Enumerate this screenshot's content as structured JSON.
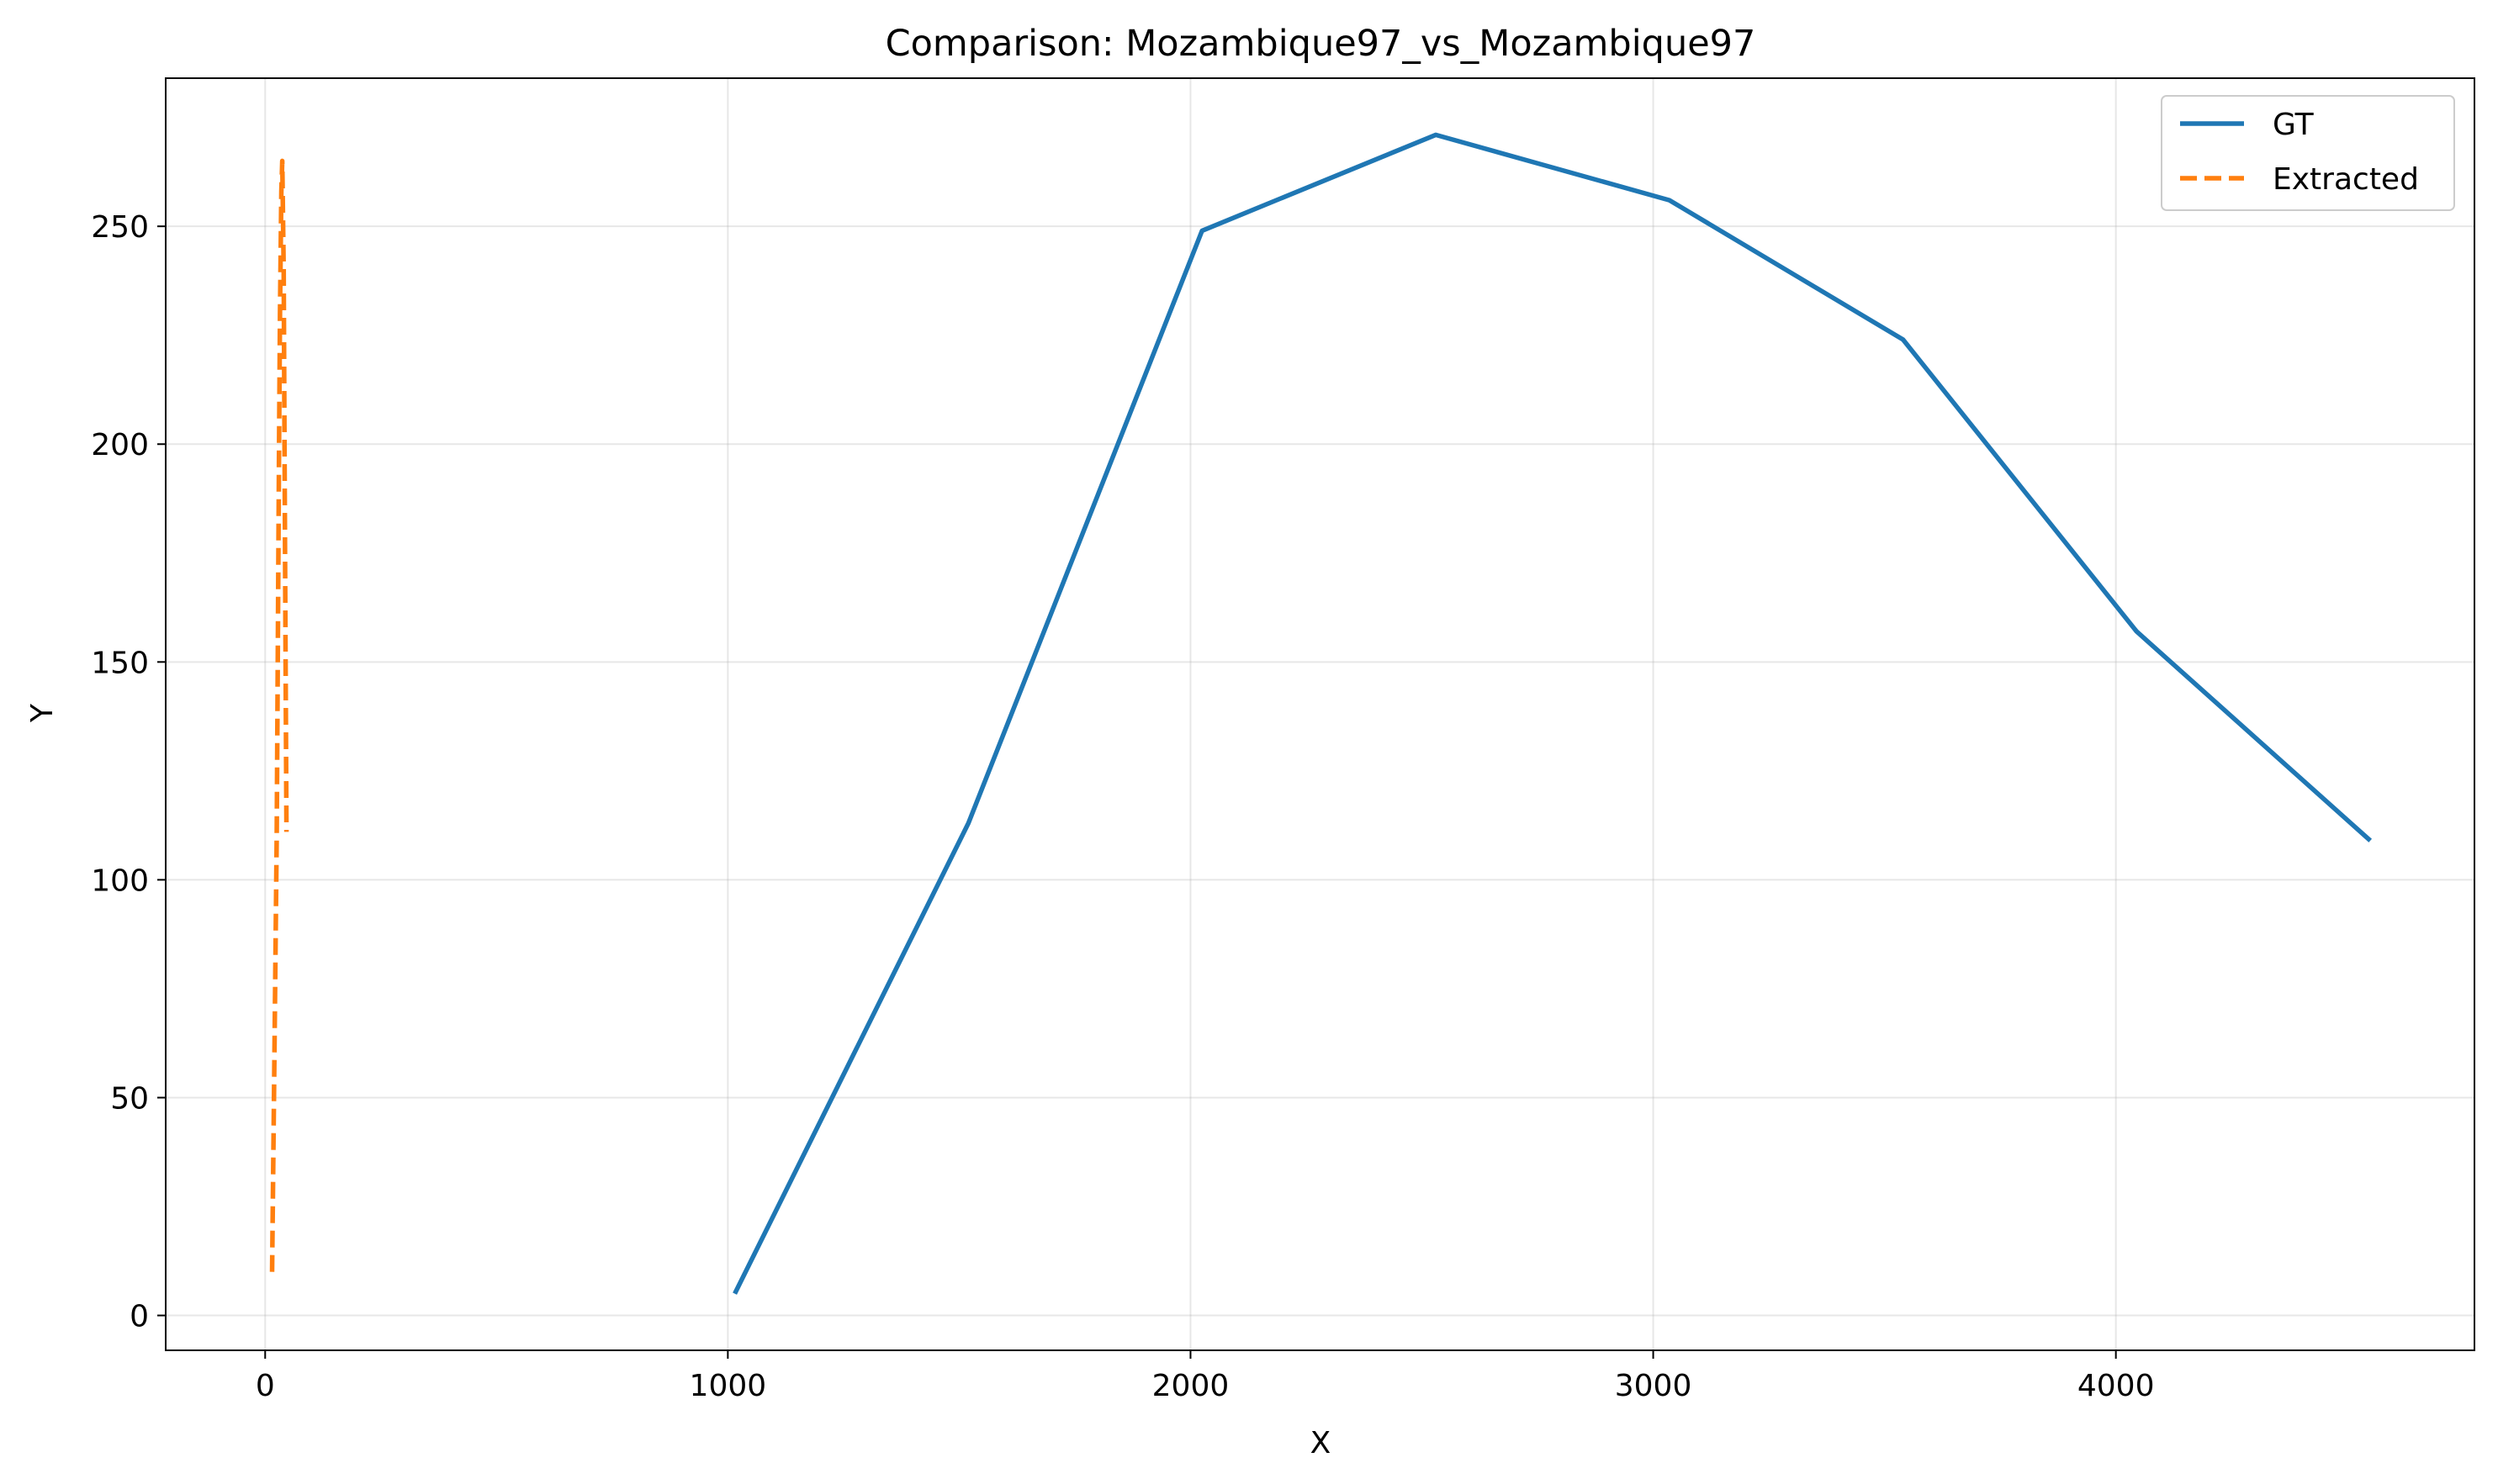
{
  "chart_data": {
    "type": "line",
    "title": "Comparison: Mozambique97_vs_Mozambique97",
    "xlabel": "X",
    "ylabel": "Y",
    "xlim": [
      -215,
      4775
    ],
    "ylim": [
      -8,
      284
    ],
    "xticks": [
      0,
      1000,
      2000,
      3000,
      4000
    ],
    "yticks": [
      0,
      50,
      100,
      150,
      200,
      250
    ],
    "grid": true,
    "legend_position": "top-right",
    "series": [
      {
        "name": "GT",
        "color": "#1f77b4",
        "style": "solid",
        "x": [
          1015,
          1520,
          2025,
          2530,
          3035,
          3540,
          4045,
          4550
        ],
        "y": [
          5,
          113,
          249,
          271,
          256,
          224,
          157,
          109
        ]
      },
      {
        "name": "Extracted",
        "color": "#ff7f0e",
        "style": "dashed",
        "x": [
          15,
          20,
          25,
          28,
          30,
          32,
          35,
          37,
          40,
          43,
          46
        ],
        "y": [
          10,
          60,
          110,
          165,
          200,
          230,
          258,
          265,
          240,
          175,
          111
        ]
      }
    ]
  }
}
